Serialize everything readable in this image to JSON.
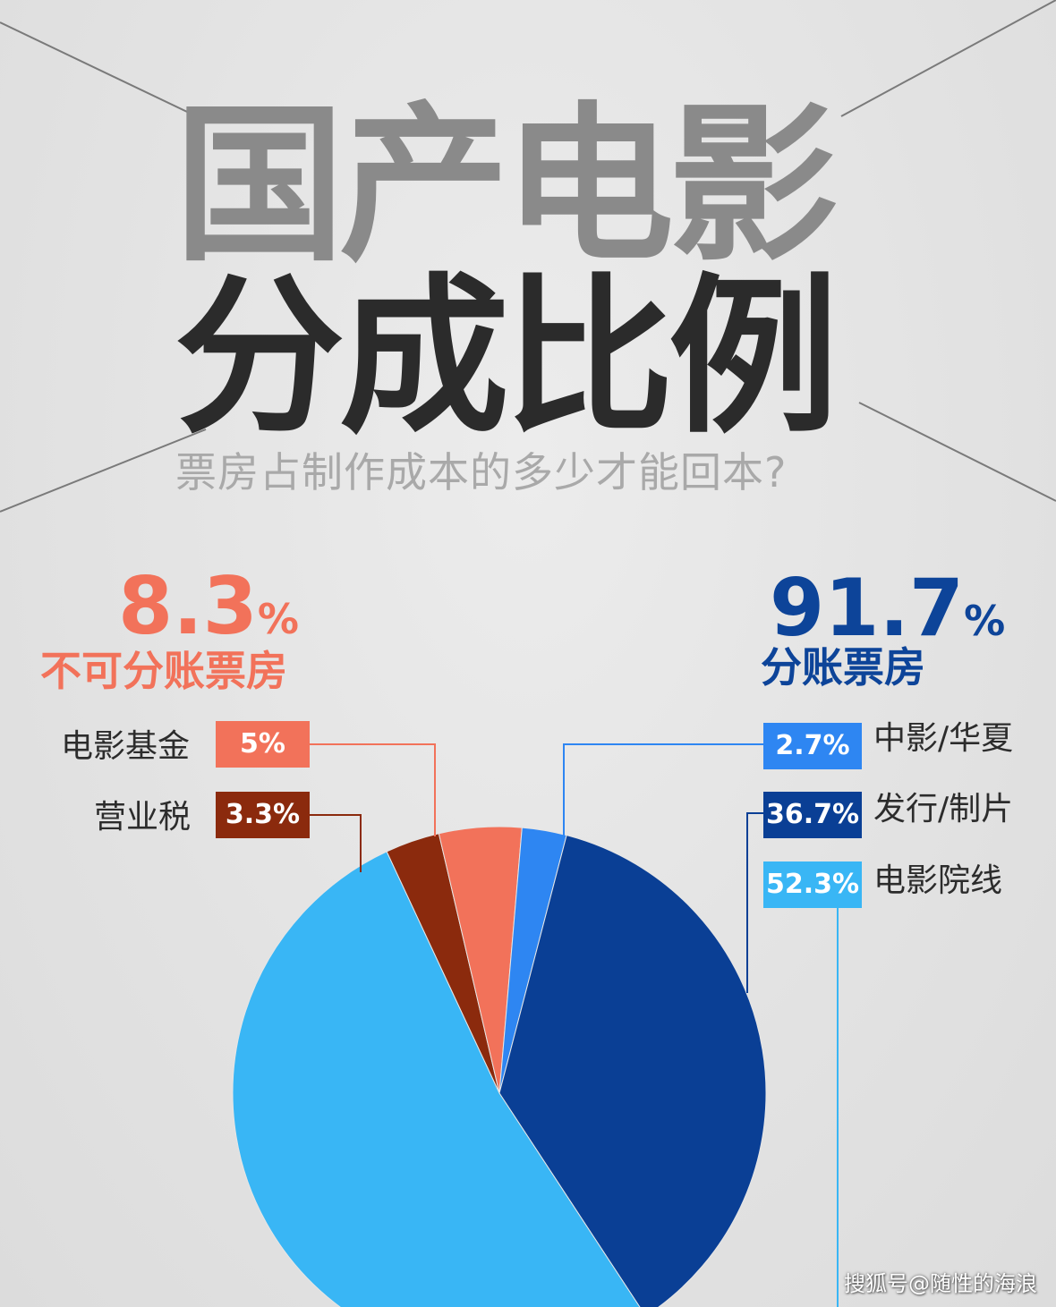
{
  "title": {
    "line1": "国产电影",
    "line2": "分成比例",
    "subtitle": "票房占制作成本的多少才能回本?"
  },
  "groups": {
    "non_split": {
      "percent": "8.3",
      "sign": "%",
      "label": "不可分账票房",
      "color": "#f2725a"
    },
    "split": {
      "percent": "91.7",
      "sign": "%",
      "label": "分账票房",
      "color": "#0d4499"
    }
  },
  "legend": [
    {
      "name": "电影基金",
      "value_label": "5%",
      "color": "#f2725a"
    },
    {
      "name": "营业税",
      "value_label": "3.3%",
      "color": "#8b2a0d"
    },
    {
      "name": "中影/华夏",
      "value_label": "2.7%",
      "color": "#2e86f2"
    },
    {
      "name": "发行/制片",
      "value_label": "36.7%",
      "color": "#0a3f95"
    },
    {
      "name": "电影院线",
      "value_label": "52.3%",
      "color": "#39b6f5"
    }
  ],
  "chart_data": {
    "type": "pie",
    "title": "",
    "slices": [
      {
        "name": "电影基金",
        "value": 5,
        "color": "#f2725a"
      },
      {
        "name": "营业税",
        "value": 3.3,
        "color": "#8b2a0d"
      },
      {
        "name": "中影/华夏",
        "value": 2.7,
        "color": "#2e86f2"
      },
      {
        "name": "发行/制片",
        "value": 36.7,
        "color": "#0a3f95"
      },
      {
        "name": "电影院线",
        "value": 52.3,
        "color": "#39b6f5"
      }
    ],
    "legend_placement": "sides"
  },
  "watermark": "搜狐号@随性的海浪"
}
